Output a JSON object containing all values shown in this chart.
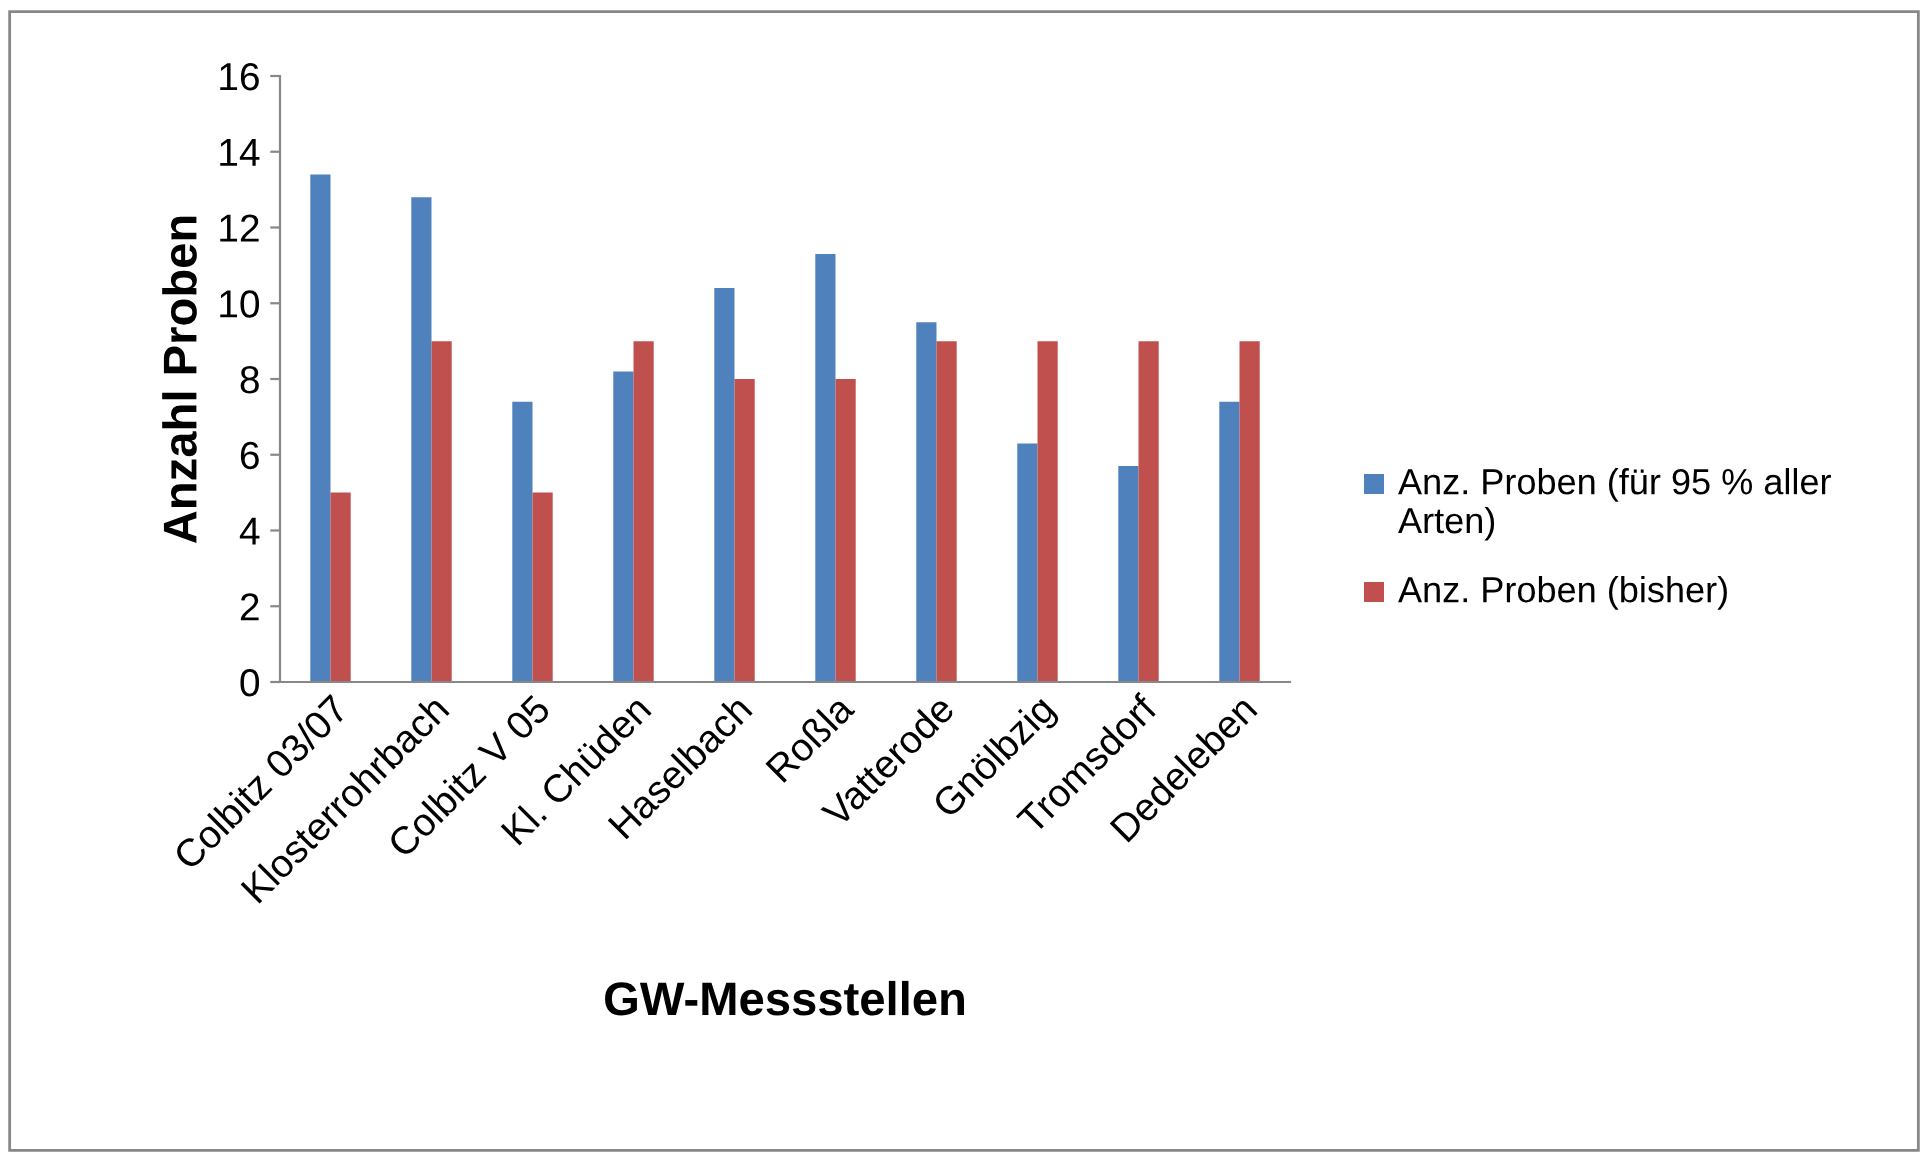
{
  "chart_data": {
    "type": "bar",
    "xlabel": "GW-Messstellen",
    "ylabel": "Anzahl Proben",
    "categories": [
      "Colbitz 03/07",
      "Klosterrohrbach",
      "Colbitz V 05",
      "Kl. Chüden",
      "Haselbach",
      "Roßla",
      "Vatterode",
      "Gnölbzig",
      "Tromsdorf",
      "Dedeleben"
    ],
    "series": [
      {
        "name": "Anz. Proben (für 95 % aller Arten)",
        "color": "#4f81bd",
        "values": [
          13.4,
          12.8,
          7.4,
          8.2,
          10.4,
          11.3,
          9.5,
          6.3,
          5.7,
          7.4
        ]
      },
      {
        "name": "Anz. Proben (bisher)",
        "color": "#c0504d",
        "values": [
          5,
          9,
          5,
          9,
          8,
          8,
          9,
          9,
          9,
          9
        ]
      }
    ],
    "ylim": [
      0,
      16
    ],
    "yticks": [
      0,
      2,
      4,
      6,
      8,
      10,
      12,
      14,
      16
    ],
    "grid": false,
    "legend": "right"
  }
}
